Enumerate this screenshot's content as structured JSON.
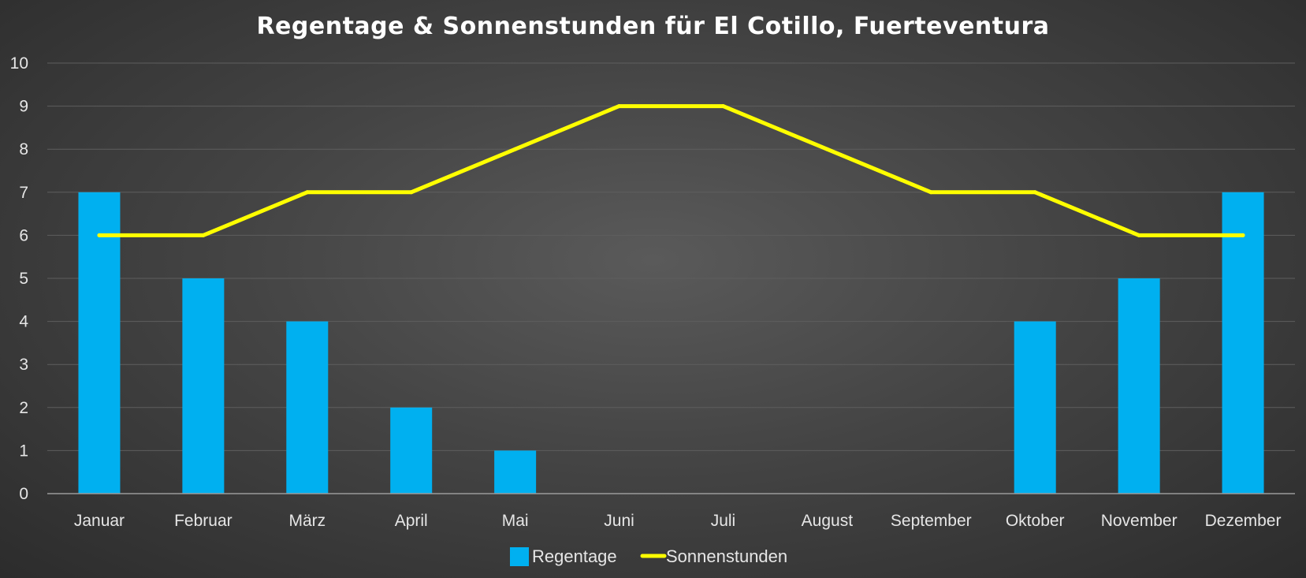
{
  "chart_data": {
    "type": "bar",
    "title": "Regentage & Sonnenstunden für El Cotillo, Fuerteventura",
    "categories": [
      "Januar",
      "Februar",
      "März",
      "April",
      "Mai",
      "Juni",
      "Juli",
      "August",
      "September",
      "Oktober",
      "November",
      "Dezember"
    ],
    "series": [
      {
        "name": "Regentage",
        "type": "bar",
        "color": "#00B0F0",
        "values": [
          7,
          5,
          4,
          2,
          1,
          0,
          0,
          0,
          0,
          4,
          5,
          7
        ]
      },
      {
        "name": "Sonnenstunden",
        "type": "line",
        "color": "#FFFF00",
        "values": [
          6,
          6,
          7,
          7,
          8,
          9,
          9,
          8,
          7,
          7,
          6,
          6
        ]
      }
    ],
    "yticks": [
      "0",
      "1",
      "2",
      "3",
      "4",
      "5",
      "6",
      "7",
      "8",
      "9",
      "10"
    ],
    "ylim": [
      0,
      10
    ],
    "grid": true,
    "legend_position": "bottom"
  },
  "colors": {
    "gridline": "#5e5e5e",
    "axis": "#9a9a9a",
    "text": "#e6e6e6"
  }
}
